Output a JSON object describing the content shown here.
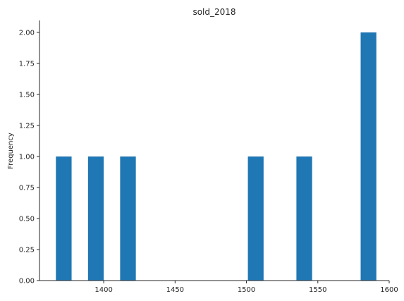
{
  "chart_data": {
    "type": "bar",
    "subtype": "histogram",
    "title": "sold_2018",
    "xlabel": "",
    "ylabel": "Frequency",
    "bins": [
      {
        "x0": 1366.5,
        "x1": 1377.5,
        "count": 1
      },
      {
        "x0": 1389.0,
        "x1": 1400.0,
        "count": 1
      },
      {
        "x0": 1411.5,
        "x1": 1422.5,
        "count": 1
      },
      {
        "x0": 1501.0,
        "x1": 1512.0,
        "count": 1
      },
      {
        "x0": 1535.0,
        "x1": 1546.0,
        "count": 1
      },
      {
        "x0": 1580.0,
        "x1": 1591.0,
        "count": 2
      }
    ],
    "xlim": [
      1355,
      1600
    ],
    "ylim": [
      0,
      2.1
    ],
    "xticks": [
      1400,
      1450,
      1500,
      1550,
      1600
    ],
    "xtick_labels": [
      "1400",
      "1450",
      "1500",
      "1550",
      "1600"
    ],
    "yticks": [
      0,
      0.25,
      0.5,
      0.75,
      1.0,
      1.25,
      1.5,
      1.75,
      2.0
    ],
    "ytick_labels": [
      "0.00",
      "0.25",
      "0.50",
      "0.75",
      "1.00",
      "1.25",
      "1.50",
      "1.75",
      "2.00"
    ],
    "bar_color": "#1f77b4",
    "axis_color": "#262626",
    "grid": false,
    "legend": "none"
  }
}
